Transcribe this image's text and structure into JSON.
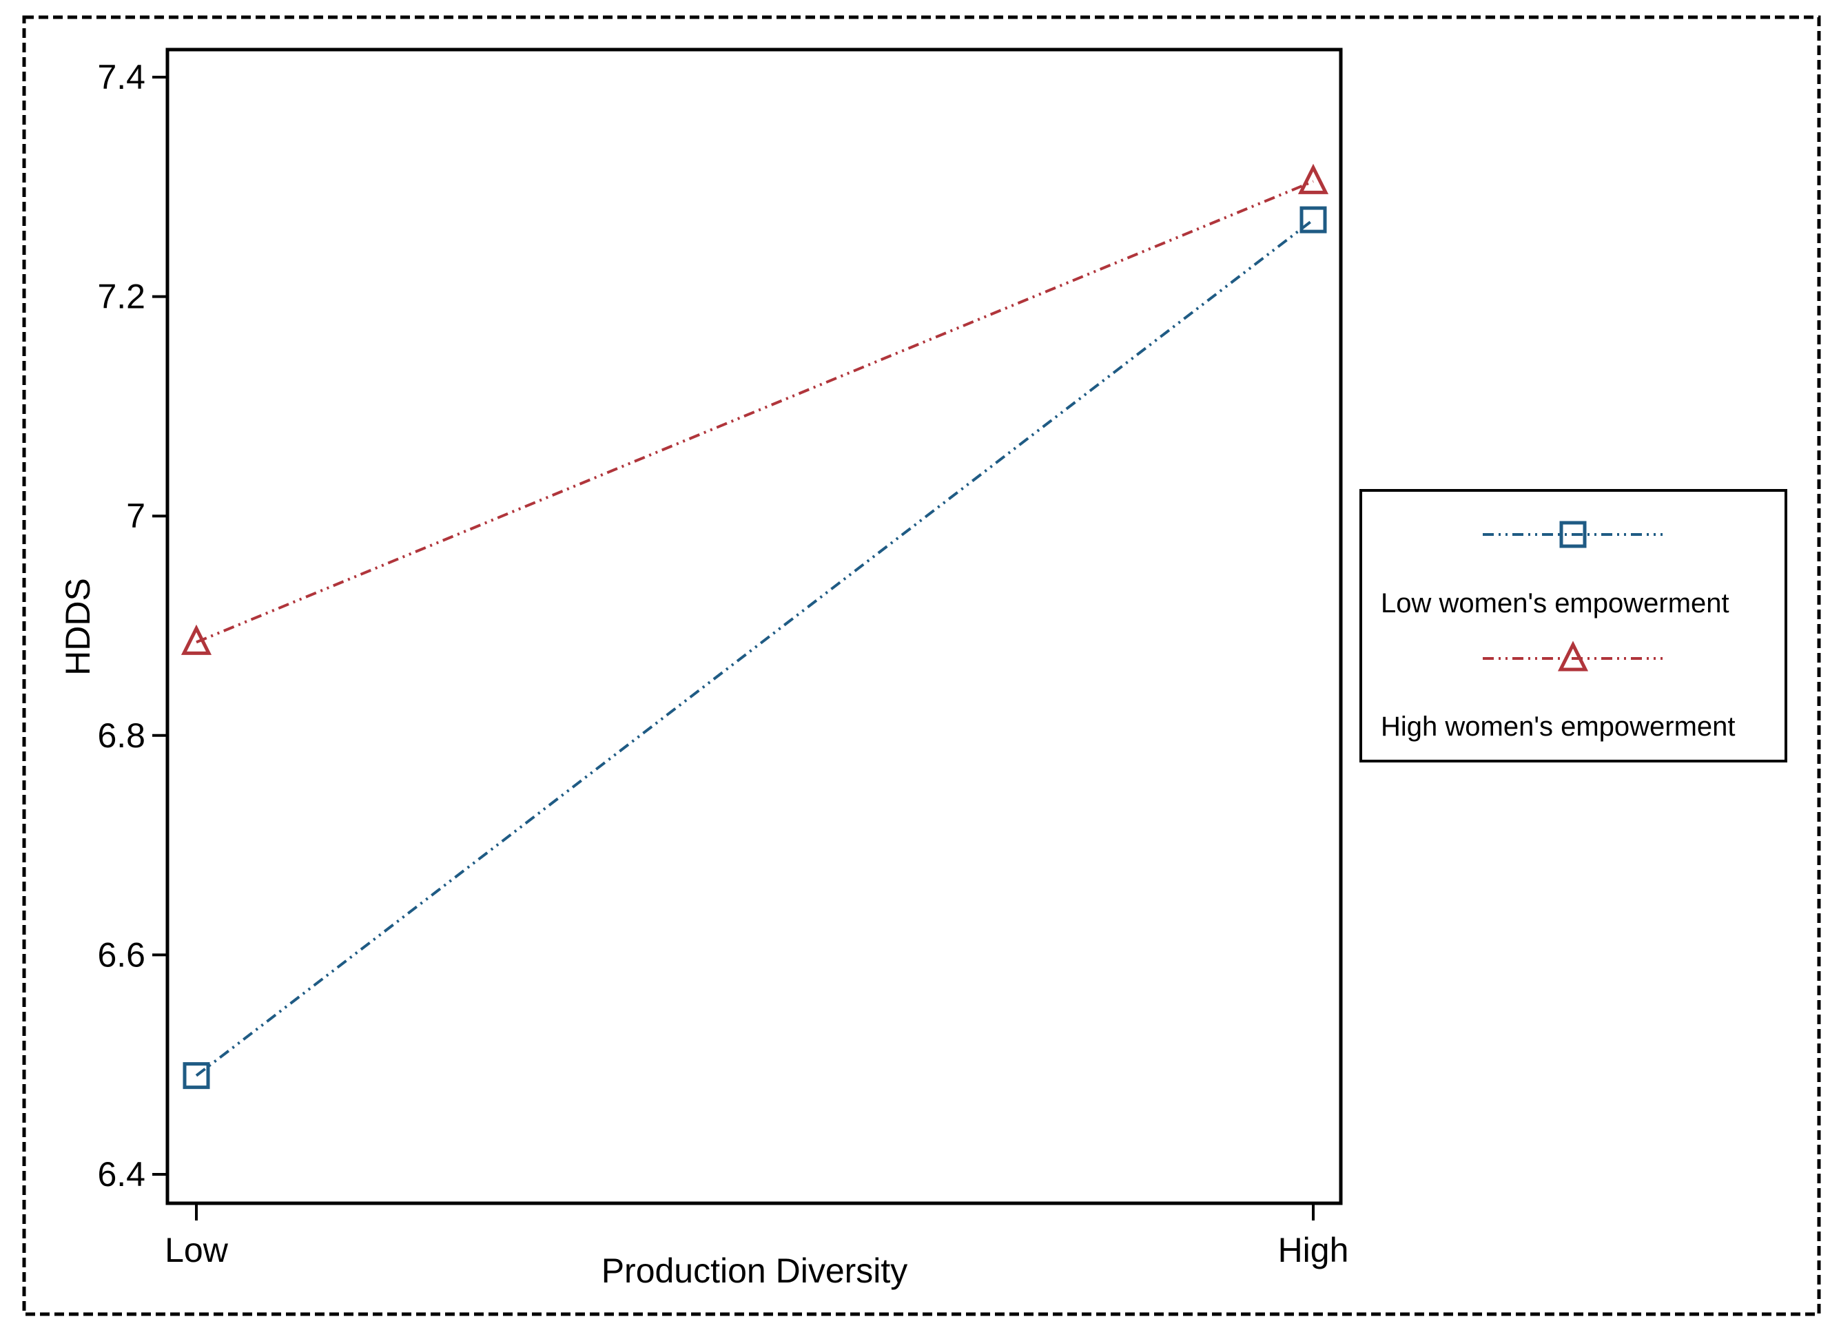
{
  "chart_data": {
    "type": "line",
    "title": "",
    "xlabel": "Production Diversity",
    "ylabel": "HDDS",
    "categories": [
      "Low",
      "High"
    ],
    "ylim": [
      6.4,
      7.4
    ],
    "yticks": [
      6.4,
      6.6,
      6.8,
      7.0,
      7.2,
      7.4
    ],
    "ytick_labels": [
      "6.4",
      "6.6",
      "6.8",
      "7",
      "7.2",
      "7.4"
    ],
    "legend_position": "right",
    "series": [
      {
        "name": "Low women's empowerment",
        "values": [
          6.49,
          7.27
        ],
        "color": "#1f5b84",
        "marker": "square"
      },
      {
        "name": "High women's empowerment",
        "values": [
          6.885,
          7.305
        ],
        "color": "#b0353b",
        "marker": "triangle"
      }
    ]
  }
}
